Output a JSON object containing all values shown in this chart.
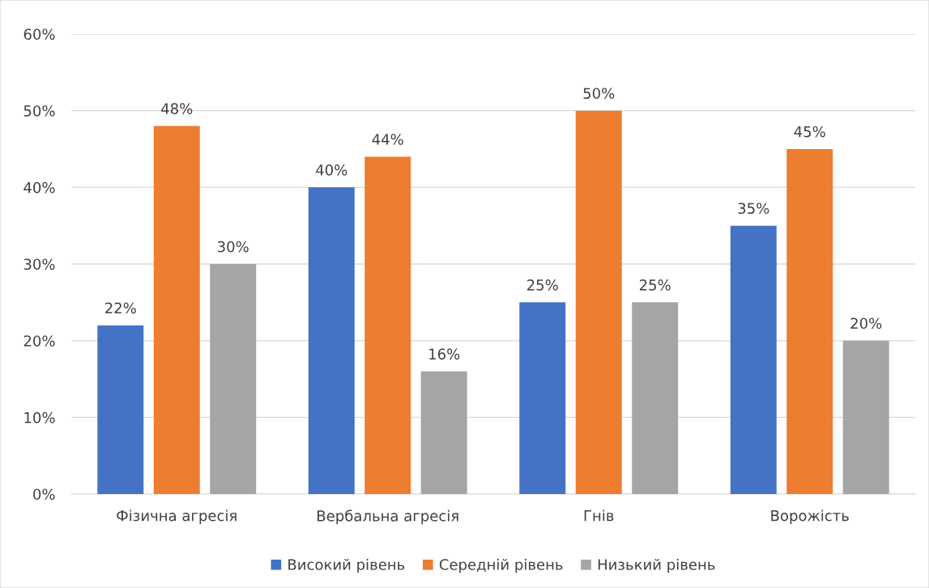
{
  "chart_data": {
    "type": "bar",
    "categories": [
      "Фізична агресія",
      "Вербальна агресія",
      "Гнів",
      "Ворожість"
    ],
    "series": [
      {
        "name": "Високий рівень",
        "color": "#4472c4",
        "values": [
          22,
          40,
          25,
          35
        ],
        "value_labels": [
          "22%",
          "40%",
          "25%",
          "35%"
        ]
      },
      {
        "name": "Середній рівень",
        "color": "#ed7d31",
        "values": [
          48,
          44,
          50,
          45
        ],
        "value_labels": [
          "48%",
          "44%",
          "50%",
          "45%"
        ]
      },
      {
        "name": "Низький рівень",
        "color": "#a5a5a5",
        "values": [
          30,
          16,
          25,
          20
        ],
        "value_labels": [
          "30%",
          "16%",
          "25%",
          "20%"
        ]
      }
    ],
    "ylim": [
      0,
      60
    ],
    "yticks": [
      {
        "value": 0,
        "label": "0%"
      },
      {
        "value": 10,
        "label": "10%"
      },
      {
        "value": 20,
        "label": "20%"
      },
      {
        "value": 30,
        "label": "30%"
      },
      {
        "value": 40,
        "label": "40%"
      },
      {
        "value": 50,
        "label": "50%"
      },
      {
        "value": 60,
        "label": "60%"
      }
    ],
    "grid": "y",
    "legend": "bottom"
  }
}
